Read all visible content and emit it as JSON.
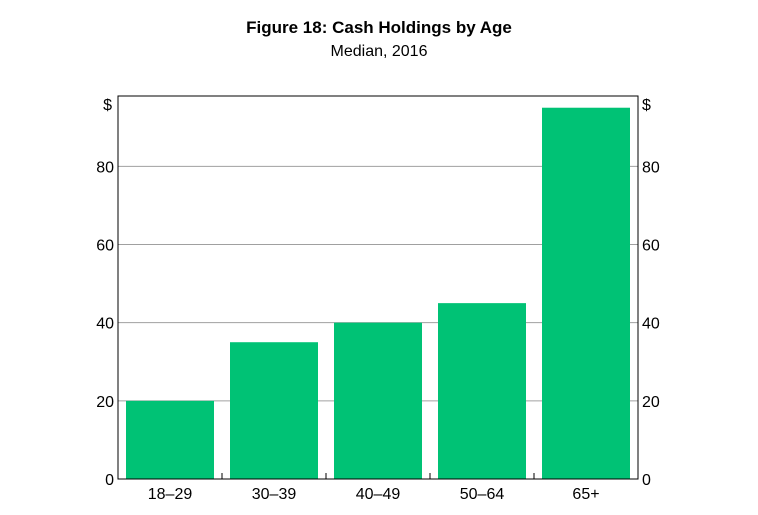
{
  "chart_data": {
    "type": "bar",
    "title": "Figure 18: Cash Holdings by Age",
    "subtitle": "Median, 2016",
    "xlabel": "",
    "ylabel": "",
    "y_unit_left": "$",
    "y_unit_right": "$",
    "categories": [
      "18–29",
      "30–39",
      "40–49",
      "50–64",
      "65+"
    ],
    "values": [
      20,
      35,
      40,
      45,
      95
    ],
    "ylim": [
      0,
      98
    ],
    "yticks": [
      "0",
      "20",
      "40",
      "60",
      "80"
    ],
    "grid": true,
    "bar_color": "#00c275"
  }
}
